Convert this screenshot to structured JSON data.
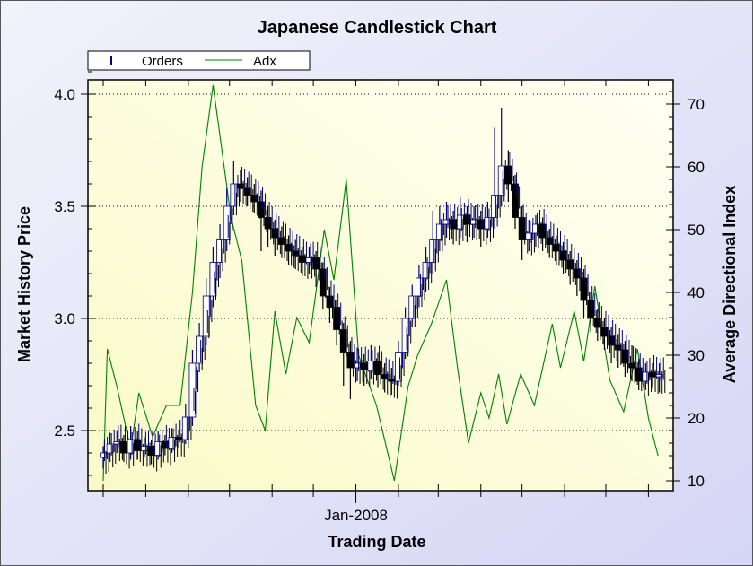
{
  "chart_data": {
    "type": "candlestick+line",
    "title": "Japanese Candlestick Chart",
    "xlabel": "Trading Date",
    "ylabel": "Market History Price",
    "y2label": "Average Directional Index",
    "ylim": [
      2.25,
      4.17
    ],
    "y2lim": [
      9,
      72.3
    ],
    "yticks": [
      "2.5",
      "3.0",
      "3.5",
      "4.0"
    ],
    "y2ticks": [
      "10",
      "20",
      "30",
      "40",
      "50",
      "60",
      "70"
    ],
    "xtick_labels": [
      {
        "day": 184,
        "label": "Jan-2008"
      }
    ],
    "x_start": "2007-07-01",
    "x_unit": "days since x_start",
    "month_ticks_days": [
      0,
      31,
      62,
      92,
      123,
      153,
      184,
      215,
      244,
      275,
      305,
      336,
      366,
      397
    ],
    "legend": {
      "placement": "top-left",
      "entries": [
        "Orders",
        "Adx"
      ]
    },
    "colors": {
      "candle": "#000000",
      "candle_up": "#000080",
      "adx": "#008000",
      "grid": "#000000"
    },
    "grid": true,
    "series": [
      {
        "name": "Orders",
        "kind": "candlestick",
        "fields": [
          "day",
          "open",
          "high",
          "low",
          "close"
        ],
        "values": [
          [
            0,
            2.38,
            2.43,
            2.33,
            2.4
          ],
          [
            5,
            2.4,
            2.49,
            2.36,
            2.44
          ],
          [
            10,
            2.44,
            2.5,
            2.4,
            2.45
          ],
          [
            15,
            2.45,
            2.48,
            2.36,
            2.4
          ],
          [
            20,
            2.4,
            2.52,
            2.37,
            2.46
          ],
          [
            25,
            2.46,
            2.5,
            2.37,
            2.41
          ],
          [
            30,
            2.41,
            2.47,
            2.38,
            2.43
          ],
          [
            35,
            2.43,
            2.46,
            2.35,
            2.39
          ],
          [
            40,
            2.39,
            2.5,
            2.37,
            2.45
          ],
          [
            45,
            2.45,
            2.48,
            2.39,
            2.42
          ],
          [
            50,
            2.42,
            2.51,
            2.4,
            2.47
          ],
          [
            55,
            2.47,
            2.5,
            2.42,
            2.46
          ],
          [
            60,
            2.46,
            2.62,
            2.44,
            2.56
          ],
          [
            65,
            2.56,
            2.86,
            2.52,
            2.8
          ],
          [
            70,
            2.8,
            2.98,
            2.76,
            2.92
          ],
          [
            75,
            2.92,
            3.18,
            2.88,
            3.1
          ],
          [
            80,
            3.1,
            3.32,
            3.05,
            3.25
          ],
          [
            85,
            3.25,
            3.42,
            3.18,
            3.35
          ],
          [
            90,
            3.35,
            3.58,
            3.3,
            3.5
          ],
          [
            95,
            3.5,
            3.7,
            3.46,
            3.6
          ],
          [
            100,
            3.6,
            3.66,
            3.52,
            3.58
          ],
          [
            105,
            3.58,
            3.63,
            3.5,
            3.55
          ],
          [
            110,
            3.55,
            3.6,
            3.47,
            3.52
          ],
          [
            115,
            3.52,
            3.57,
            3.3,
            3.45
          ],
          [
            120,
            3.45,
            3.5,
            3.32,
            3.4
          ],
          [
            125,
            3.4,
            3.44,
            3.28,
            3.36
          ],
          [
            130,
            3.36,
            3.41,
            3.27,
            3.33
          ],
          [
            135,
            3.33,
            3.37,
            3.24,
            3.3
          ],
          [
            140,
            3.3,
            3.35,
            3.22,
            3.28
          ],
          [
            145,
            3.28,
            3.32,
            3.19,
            3.25
          ],
          [
            150,
            3.25,
            3.32,
            3.2,
            3.27
          ],
          [
            155,
            3.27,
            3.3,
            3.14,
            3.22
          ],
          [
            160,
            3.22,
            3.25,
            3.04,
            3.1
          ],
          [
            165,
            3.1,
            3.14,
            2.98,
            3.05
          ],
          [
            170,
            3.05,
            3.08,
            2.88,
            2.95
          ],
          [
            175,
            2.95,
            2.98,
            2.7,
            2.85
          ],
          [
            180,
            2.85,
            2.9,
            2.64,
            2.78
          ],
          [
            185,
            2.78,
            2.87,
            2.72,
            2.8
          ],
          [
            190,
            2.8,
            2.84,
            2.7,
            2.77
          ],
          [
            195,
            2.77,
            2.88,
            2.73,
            2.81
          ],
          [
            200,
            2.81,
            2.85,
            2.69,
            2.75
          ],
          [
            205,
            2.75,
            2.8,
            2.67,
            2.73
          ],
          [
            210,
            2.73,
            2.78,
            2.66,
            2.72
          ],
          [
            215,
            2.72,
            2.9,
            2.7,
            2.85
          ],
          [
            220,
            2.85,
            3.05,
            2.82,
            3.0
          ],
          [
            225,
            3.0,
            3.15,
            2.96,
            3.1
          ],
          [
            230,
            3.1,
            3.24,
            3.05,
            3.18
          ],
          [
            235,
            3.18,
            3.32,
            3.12,
            3.25
          ],
          [
            240,
            3.25,
            3.48,
            3.2,
            3.35
          ],
          [
            245,
            3.35,
            3.5,
            3.3,
            3.42
          ],
          [
            250,
            3.42,
            3.52,
            3.36,
            3.44
          ],
          [
            255,
            3.44,
            3.48,
            3.33,
            3.4
          ],
          [
            260,
            3.4,
            3.54,
            3.36,
            3.46
          ],
          [
            265,
            3.46,
            3.5,
            3.34,
            3.42
          ],
          [
            270,
            3.42,
            3.5,
            3.36,
            3.44
          ],
          [
            275,
            3.44,
            3.48,
            3.32,
            3.4
          ],
          [
            280,
            3.4,
            3.52,
            3.36,
            3.45
          ],
          [
            285,
            3.45,
            3.85,
            3.4,
            3.55
          ],
          [
            290,
            3.55,
            3.94,
            3.5,
            3.68
          ],
          [
            295,
            3.68,
            3.75,
            3.52,
            3.6
          ],
          [
            300,
            3.6,
            3.64,
            3.4,
            3.45
          ],
          [
            305,
            3.45,
            3.5,
            3.26,
            3.35
          ],
          [
            310,
            3.35,
            3.44,
            3.3,
            3.38
          ],
          [
            315,
            3.38,
            3.46,
            3.32,
            3.42
          ],
          [
            320,
            3.42,
            3.45,
            3.3,
            3.36
          ],
          [
            325,
            3.36,
            3.4,
            3.27,
            3.33
          ],
          [
            330,
            3.33,
            3.37,
            3.24,
            3.3
          ],
          [
            335,
            3.3,
            3.34,
            3.2,
            3.26
          ],
          [
            340,
            3.26,
            3.3,
            3.15,
            3.22
          ],
          [
            345,
            3.22,
            3.26,
            3.1,
            3.18
          ],
          [
            350,
            3.18,
            3.22,
            3.0,
            3.08
          ],
          [
            355,
            3.08,
            3.12,
            2.94,
            3.0
          ],
          [
            360,
            3.0,
            3.04,
            2.9,
            2.96
          ],
          [
            365,
            2.96,
            3.0,
            2.86,
            2.92
          ],
          [
            370,
            2.92,
            2.96,
            2.8,
            2.88
          ],
          [
            375,
            2.88,
            2.93,
            2.78,
            2.86
          ],
          [
            380,
            2.86,
            2.9,
            2.74,
            2.8
          ],
          [
            385,
            2.8,
            2.88,
            2.72,
            2.78
          ],
          [
            390,
            2.78,
            2.82,
            2.68,
            2.72
          ],
          [
            395,
            2.72,
            2.8,
            2.68,
            2.76
          ],
          [
            400,
            2.76,
            2.8,
            2.69,
            2.74
          ],
          [
            405,
            2.74,
            2.8,
            2.67,
            2.75
          ]
        ]
      },
      {
        "name": "Adx",
        "kind": "line",
        "axis": "right",
        "fields": [
          "day",
          "value"
        ],
        "values": [
          [
            0,
            10
          ],
          [
            3,
            31
          ],
          [
            10,
            25
          ],
          [
            20,
            15
          ],
          [
            26,
            24
          ],
          [
            36,
            17
          ],
          [
            46,
            22
          ],
          [
            56,
            22
          ],
          [
            65,
            40
          ],
          [
            72,
            60
          ],
          [
            80,
            73
          ],
          [
            85,
            65
          ],
          [
            93,
            52
          ],
          [
            101,
            45
          ],
          [
            111,
            22
          ],
          [
            118,
            18
          ],
          [
            125,
            37
          ],
          [
            133,
            27
          ],
          [
            141,
            36
          ],
          [
            150,
            32
          ],
          [
            161,
            50
          ],
          [
            168,
            42
          ],
          [
            177,
            58
          ],
          [
            186,
            30
          ],
          [
            199,
            22
          ],
          [
            212,
            10
          ],
          [
            222,
            25
          ],
          [
            229,
            30
          ],
          [
            239,
            35
          ],
          [
            250,
            42
          ],
          [
            258,
            28
          ],
          [
            266,
            16
          ],
          [
            275,
            24
          ],
          [
            281,
            20
          ],
          [
            288,
            27
          ],
          [
            294,
            19
          ],
          [
            304,
            27
          ],
          [
            314,
            22
          ],
          [
            327,
            35
          ],
          [
            333,
            28
          ],
          [
            343,
            37
          ],
          [
            350,
            29
          ],
          [
            358,
            41
          ],
          [
            369,
            26
          ],
          [
            379,
            21
          ],
          [
            389,
            31
          ],
          [
            397,
            20
          ],
          [
            404,
            14
          ]
        ]
      }
    ]
  }
}
